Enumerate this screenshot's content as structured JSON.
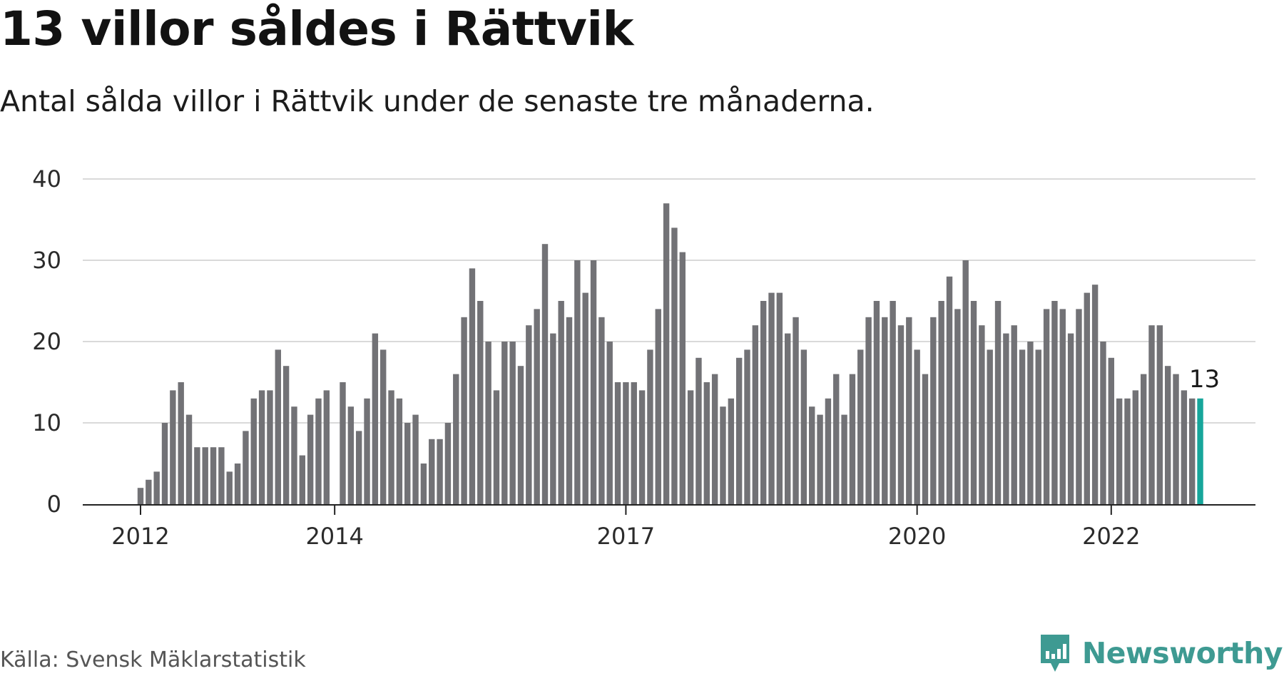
{
  "header": {
    "title": "13 villor såldes i Rättvik",
    "subtitle": "Antal sålda villor i Rättvik under de senaste tre månaderna."
  },
  "footer": {
    "source": "Källa: Svensk Mäklarstatistik",
    "brand": "Newsworthy",
    "brand_icon": "newsworthy-logo-icon"
  },
  "colors": {
    "bar": "#727276",
    "highlight": "#16a69b",
    "grid": "#d9d9d9",
    "axis": "#222222",
    "brand": "#3e9a92"
  },
  "chart_data": {
    "type": "bar",
    "title": "13 villor såldes i Rättvik",
    "subtitle": "Antal sålda villor i Rättvik under de senaste tre månaderna.",
    "xlabel": "",
    "ylabel": "",
    "ylim": [
      0,
      40
    ],
    "yticks": [
      "0",
      "10",
      "20",
      "30",
      "40"
    ],
    "grid": "horizontal",
    "legend": "none",
    "x_tick_labels": [
      "2012",
      "2014",
      "2017",
      "2020",
      "2022"
    ],
    "x_tick_positions": [
      0,
      24,
      60,
      96,
      120
    ],
    "highlight_label": "13",
    "values": [
      2,
      3,
      4,
      10,
      14,
      15,
      11,
      7,
      7,
      7,
      7,
      4,
      5,
      9,
      13,
      14,
      14,
      19,
      17,
      12,
      6,
      11,
      13,
      14,
      0,
      15,
      12,
      9,
      13,
      21,
      19,
      14,
      13,
      10,
      11,
      5,
      8,
      8,
      10,
      16,
      23,
      29,
      25,
      20,
      14,
      20,
      20,
      17,
      22,
      24,
      32,
      21,
      25,
      23,
      30,
      26,
      30,
      23,
      20,
      15,
      15,
      15,
      14,
      19,
      24,
      37,
      34,
      31,
      14,
      18,
      15,
      16,
      12,
      13,
      18,
      19,
      22,
      25,
      26,
      26,
      21,
      23,
      19,
      12,
      11,
      13,
      16,
      11,
      16,
      19,
      23,
      25,
      23,
      25,
      22,
      23,
      19,
      16,
      23,
      25,
      28,
      24,
      30,
      25,
      22,
      19,
      25,
      21,
      22,
      19,
      20,
      19,
      24,
      25,
      24,
      21,
      24,
      26,
      27,
      20,
      18,
      13,
      13,
      14,
      16,
      22,
      22,
      17,
      16,
      14,
      13,
      13
    ]
  }
}
